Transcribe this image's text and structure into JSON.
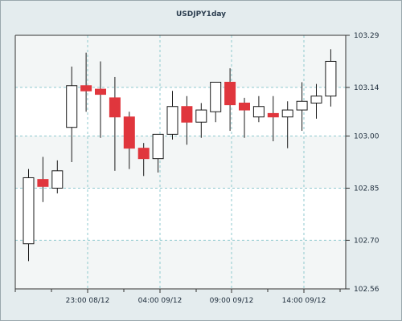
{
  "chart_data": {
    "type": "candlestick",
    "title": "USDJPY1day",
    "xlabel": "",
    "ylabel": "",
    "ylim": [
      102.56,
      103.29
    ],
    "y_ticks": [
      "103.29",
      "103.14",
      "103.00",
      "102.85",
      "102.70",
      "102.56"
    ],
    "x_ticks": [
      "23:00 08/12",
      "04:00 09/12",
      "09:00 09/12",
      "14:00 09/12"
    ],
    "grid": true,
    "colors": {
      "up_body": "#ffffff",
      "down_body": "#e0363d",
      "wick": "#1a1a1a",
      "grid": "#8fc9cf",
      "plot_bg": "#ffffff",
      "shade": "#f3f6f6"
    },
    "candles": [
      {
        "open": 102.69,
        "high": 102.905,
        "low": 102.64,
        "close": 102.88
      },
      {
        "open": 102.875,
        "high": 102.94,
        "low": 102.81,
        "close": 102.855
      },
      {
        "open": 102.85,
        "high": 102.93,
        "low": 102.835,
        "close": 102.9
      },
      {
        "open": 103.025,
        "high": 103.2,
        "low": 102.925,
        "close": 103.145
      },
      {
        "open": 103.145,
        "high": 103.24,
        "low": 103.07,
        "close": 103.13
      },
      {
        "open": 103.135,
        "high": 103.215,
        "low": 102.995,
        "close": 103.12
      },
      {
        "open": 103.11,
        "high": 103.17,
        "low": 102.9,
        "close": 103.055
      },
      {
        "open": 103.055,
        "high": 103.07,
        "low": 102.905,
        "close": 102.965
      },
      {
        "open": 102.965,
        "high": 102.98,
        "low": 102.885,
        "close": 102.935
      },
      {
        "open": 102.935,
        "high": 103.0,
        "low": 102.895,
        "close": 103.005
      },
      {
        "open": 103.005,
        "high": 103.13,
        "low": 102.99,
        "close": 103.085
      },
      {
        "open": 103.085,
        "high": 103.115,
        "low": 102.975,
        "close": 103.04
      },
      {
        "open": 103.04,
        "high": 103.095,
        "low": 102.995,
        "close": 103.075
      },
      {
        "open": 103.07,
        "high": 103.155,
        "low": 103.04,
        "close": 103.155
      },
      {
        "open": 103.155,
        "high": 103.195,
        "low": 103.015,
        "close": 103.09
      },
      {
        "open": 103.095,
        "high": 103.11,
        "low": 102.995,
        "close": 103.075
      },
      {
        "open": 103.055,
        "high": 103.115,
        "low": 103.04,
        "close": 103.085
      },
      {
        "open": 103.065,
        "high": 103.115,
        "low": 102.985,
        "close": 103.055
      },
      {
        "open": 103.055,
        "high": 103.1,
        "low": 102.965,
        "close": 103.075
      },
      {
        "open": 103.075,
        "high": 103.155,
        "low": 103.015,
        "close": 103.1
      },
      {
        "open": 103.095,
        "high": 103.15,
        "low": 103.05,
        "close": 103.115
      },
      {
        "open": 103.115,
        "high": 103.25,
        "low": 103.085,
        "close": 103.215
      }
    ]
  }
}
